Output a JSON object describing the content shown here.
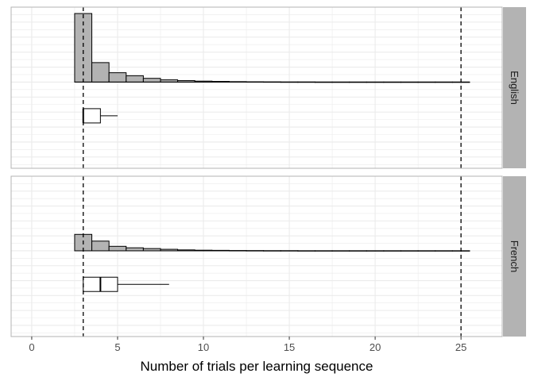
{
  "chart_data": {
    "type": "histogram",
    "xlabel": "Number of trials per learning sequence",
    "xlim": [
      -1.2,
      27.4
    ],
    "x_ticks": [
      0,
      5,
      10,
      15,
      20,
      25
    ],
    "x_tick_labels": [
      "0",
      "5",
      "10",
      "15",
      "20",
      "25"
    ],
    "reference_lines": [
      3,
      25
    ],
    "grid": true,
    "bin_width": 1,
    "bin_centers": [
      3,
      4,
      5,
      6,
      7,
      8,
      9,
      10,
      11,
      12,
      13,
      14,
      15,
      16,
      17,
      18,
      19,
      20,
      21,
      22,
      23,
      24,
      25
    ],
    "colors": {
      "bar_fill": "#b3b3b3",
      "strip_bg": "#b3b3b3",
      "grid": "#ebebeb",
      "panel_border": "#b3b3b3"
    },
    "facets": [
      {
        "label": "English",
        "ylim": [
          -1.15,
          1.0
        ],
        "counts": [
          0.915,
          0.26,
          0.125,
          0.085,
          0.05,
          0.03,
          0.02,
          0.013,
          0.009,
          0.006,
          0.004,
          0.003,
          0.002,
          0.002,
          0.001,
          0.001,
          0.001,
          0.001,
          0.001,
          0.001,
          0.001,
          0.001,
          0.001
        ],
        "boxplot": {
          "whisker_low": 3,
          "q1": 3,
          "median": 3,
          "q3": 4,
          "whisker_high": 5
        }
      },
      {
        "label": "French",
        "ylim": [
          -1.15,
          1.0
        ],
        "counts": [
          0.22,
          0.13,
          0.06,
          0.04,
          0.03,
          0.02,
          0.012,
          0.008,
          0.006,
          0.004,
          0.003,
          0.002,
          0.002,
          0.001,
          0.001,
          0.001,
          0.001,
          0.001,
          0.001,
          0.001,
          0.001,
          0.001,
          0.001
        ],
        "boxplot": {
          "whisker_low": 3,
          "q1": 3,
          "median": 4,
          "q3": 5,
          "whisker_high": 8
        }
      }
    ]
  }
}
